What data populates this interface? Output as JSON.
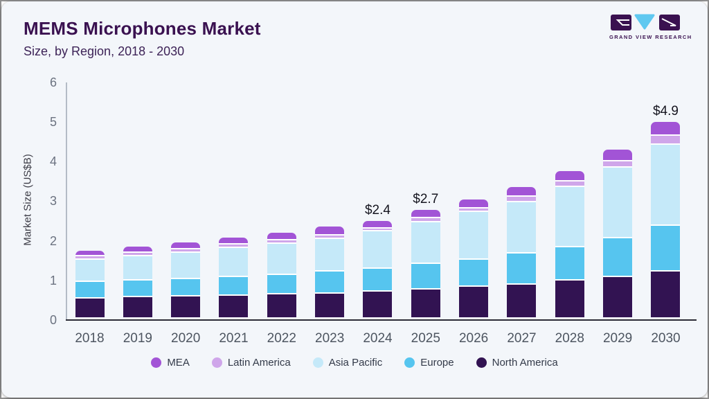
{
  "header": {
    "title": "MEMS Microphones Market",
    "subtitle": "Size, by Region, 2018 - 2030"
  },
  "logo": {
    "brand": "GRAND VIEW RESEARCH",
    "purple": "#3a1150",
    "blue": "#5fc8f0"
  },
  "colors": {
    "card_bg": "#f3f6fa",
    "title_text": "#3a1150",
    "y_axis_line": "#b4bcc6",
    "x_axis_line": "#2b2b36",
    "tick_text": "#6b7280",
    "year_text": "#4d5560",
    "annotation_text": "#15151f",
    "legend_text": "#333a49"
  },
  "chart_data": {
    "type": "bar",
    "stacked": true,
    "title": "MEMS Microphones Market Size, by Region, 2018 - 2030",
    "xlabel": "",
    "ylabel": "Market Size (US$B)",
    "ylim": [
      0,
      6
    ],
    "yticks": [
      "0",
      "1",
      "2",
      "3",
      "4",
      "5",
      "6"
    ],
    "grid": false,
    "legend_position": "bottom",
    "categories": [
      "2018",
      "2019",
      "2020",
      "2021",
      "2022",
      "2023",
      "2024",
      "2025",
      "2026",
      "2027",
      "2028",
      "2029",
      "2030"
    ],
    "series": [
      {
        "name": "North America",
        "color": "#321352",
        "values": [
          0.48,
          0.5,
          0.53,
          0.55,
          0.57,
          0.6,
          0.64,
          0.7,
          0.77,
          0.82,
          0.92,
          1.01,
          1.16
        ]
      },
      {
        "name": "Europe",
        "color": "#56c5ef",
        "values": [
          0.41,
          0.43,
          0.43,
          0.47,
          0.5,
          0.55,
          0.59,
          0.64,
          0.68,
          0.78,
          0.85,
          0.99,
          1.14
        ]
      },
      {
        "name": "Asia Pacific",
        "color": "#c5e9f9",
        "values": [
          0.57,
          0.61,
          0.67,
          0.72,
          0.78,
          0.83,
          0.93,
          1.06,
          1.2,
          1.3,
          1.52,
          1.77,
          2.06
        ]
      },
      {
        "name": "Latin America",
        "color": "#cfa6ea",
        "values": [
          0.07,
          0.08,
          0.08,
          0.09,
          0.09,
          0.09,
          0.08,
          0.1,
          0.1,
          0.15,
          0.14,
          0.17,
          0.22
        ]
      },
      {
        "name": "MEA",
        "color": "#a254d6",
        "values": [
          0.12,
          0.13,
          0.14,
          0.14,
          0.16,
          0.18,
          0.16,
          0.18,
          0.18,
          0.2,
          0.22,
          0.26,
          0.32
        ]
      }
    ],
    "totals": [
      1.65,
      1.75,
      1.85,
      1.97,
      2.1,
      2.25,
      2.4,
      2.68,
      2.93,
      3.25,
      3.65,
      4.2,
      4.9
    ],
    "annotations": {
      "2024": "$2.4",
      "2025": "$2.7",
      "2030": "$4.9"
    },
    "legend_order": [
      "MEA",
      "Latin America",
      "Asia Pacific",
      "Europe",
      "North America"
    ]
  }
}
